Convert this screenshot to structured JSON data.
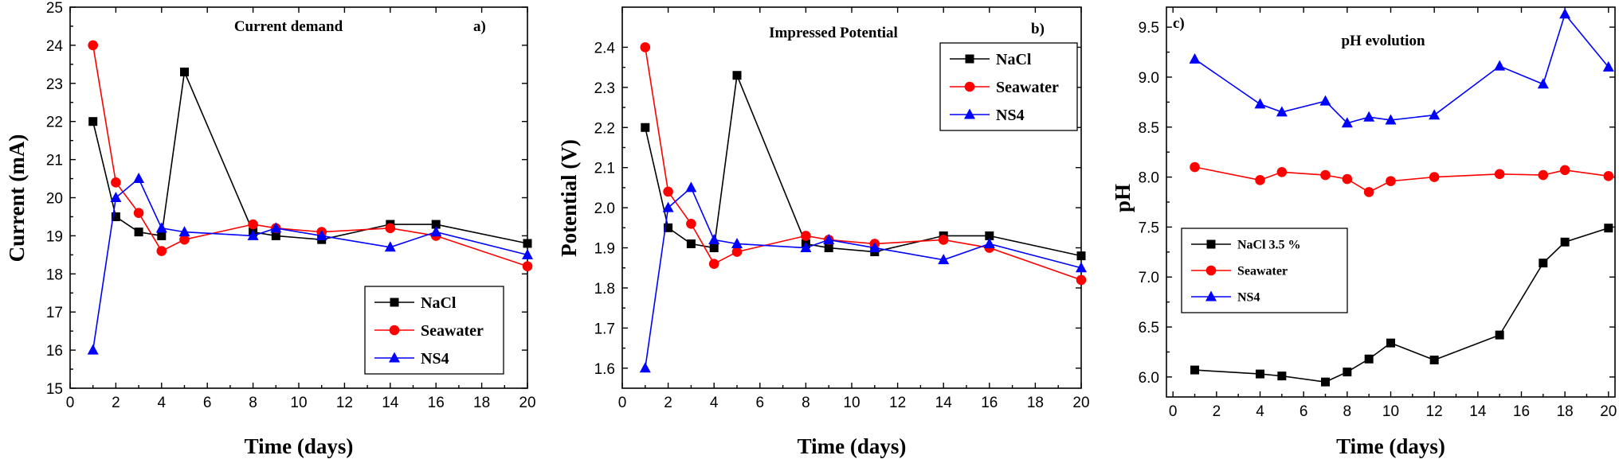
{
  "figure_colors": {
    "NaCl": "#000000",
    "Seawater": "#ff0000",
    "NS4": "#0000ff"
  },
  "chart_data": [
    {
      "type": "line",
      "title": "Current demand",
      "panel_label": "a)",
      "xlabel": "Time (days)",
      "ylabel": "Current (mA)",
      "xlim": [
        0,
        20
      ],
      "ylim": [
        15,
        25
      ],
      "xticks": [
        "0",
        "2",
        "4",
        "6",
        "8",
        "10",
        "12",
        "14",
        "16",
        "18",
        "20"
      ],
      "yticks": [
        "15",
        "16",
        "17",
        "18",
        "19",
        "20",
        "21",
        "22",
        "23",
        "24",
        "25"
      ],
      "legend": "bottom-right",
      "series": [
        {
          "name": "NaCl",
          "marker": "square",
          "x": [
            1,
            2,
            3,
            4,
            5,
            8,
            9,
            11,
            14,
            16,
            20
          ],
          "y": [
            22.0,
            19.5,
            19.1,
            19.0,
            23.3,
            19.1,
            19.0,
            18.9,
            19.3,
            19.3,
            18.8
          ]
        },
        {
          "name": "Seawater",
          "marker": "circle",
          "x": [
            1,
            2,
            3,
            4,
            5,
            8,
            9,
            11,
            14,
            16,
            20
          ],
          "y": [
            24.0,
            20.4,
            19.6,
            18.6,
            18.9,
            19.3,
            19.2,
            19.1,
            19.2,
            19.0,
            18.2
          ]
        },
        {
          "name": "NS4",
          "marker": "triangle",
          "x": [
            1,
            2,
            3,
            4,
            5,
            8,
            9,
            11,
            14,
            16,
            20
          ],
          "y": [
            16.0,
            20.0,
            20.5,
            19.2,
            19.1,
            19.0,
            19.2,
            19.0,
            18.7,
            19.1,
            18.5
          ]
        }
      ]
    },
    {
      "type": "line",
      "title": "Impressed Potential",
      "panel_label": "b)",
      "xlabel": "Time (days)",
      "ylabel": "Potential (V)",
      "xlim": [
        0,
        20
      ],
      "ylim": [
        1.55,
        2.5
      ],
      "xticks": [
        "0",
        "2",
        "4",
        "6",
        "8",
        "10",
        "12",
        "14",
        "16",
        "18",
        "20"
      ],
      "yticks": [
        "1.6",
        "1.7",
        "1.8",
        "1.9",
        "2.0",
        "2.1",
        "2.2",
        "2.3",
        "2.4"
      ],
      "legend": "top-right",
      "series": [
        {
          "name": "NaCl",
          "marker": "square",
          "x": [
            1,
            2,
            3,
            4,
            5,
            8,
            9,
            11,
            14,
            16,
            20
          ],
          "y": [
            2.2,
            1.95,
            1.91,
            1.9,
            2.33,
            1.91,
            1.9,
            1.89,
            1.93,
            1.93,
            1.88
          ]
        },
        {
          "name": "Seawater",
          "marker": "circle",
          "x": [
            1,
            2,
            3,
            4,
            5,
            8,
            9,
            11,
            14,
            16,
            20
          ],
          "y": [
            2.4,
            2.04,
            1.96,
            1.86,
            1.89,
            1.93,
            1.92,
            1.91,
            1.92,
            1.9,
            1.82
          ]
        },
        {
          "name": "NS4",
          "marker": "triangle",
          "x": [
            1,
            2,
            3,
            4,
            5,
            8,
            9,
            11,
            14,
            16,
            20
          ],
          "y": [
            1.6,
            2.0,
            2.05,
            1.92,
            1.91,
            1.9,
            1.92,
            1.9,
            1.87,
            1.91,
            1.85
          ]
        }
      ]
    },
    {
      "type": "line",
      "title": "pH evolution",
      "panel_label": "c)",
      "xlabel": "Time (days)",
      "ylabel": "pH",
      "xlim": [
        -0.3,
        20.3
      ],
      "ylim": [
        5.8,
        9.7
      ],
      "xticks": [
        "0",
        "2",
        "4",
        "6",
        "8",
        "10",
        "12",
        "14",
        "16",
        "18",
        "20"
      ],
      "yticks": [
        "6.0",
        "6.5",
        "7.0",
        "7.5",
        "8.0",
        "8.5",
        "9.0",
        "9.5"
      ],
      "legend": "middle-left",
      "series": [
        {
          "name": "NaCl 3.5 %",
          "marker": "square",
          "x": [
            1,
            4,
            5,
            7,
            8,
            9,
            10,
            12,
            15,
            17,
            18,
            20
          ],
          "y": [
            6.07,
            6.03,
            6.01,
            5.95,
            6.05,
            6.18,
            6.34,
            6.17,
            6.42,
            7.14,
            7.35,
            7.49
          ]
        },
        {
          "name": "Seawater",
          "marker": "circle",
          "x": [
            1,
            4,
            5,
            7,
            8,
            9,
            10,
            12,
            15,
            17,
            18,
            20
          ],
          "y": [
            8.1,
            7.97,
            8.05,
            8.02,
            7.98,
            7.85,
            7.96,
            8.0,
            8.03,
            8.02,
            8.07,
            8.01
          ]
        },
        {
          "name": "NS4",
          "marker": "triangle",
          "x": [
            1,
            4,
            5,
            7,
            8,
            9,
            10,
            12,
            15,
            17,
            18,
            20
          ],
          "y": [
            9.18,
            8.73,
            8.65,
            8.76,
            8.54,
            8.6,
            8.57,
            8.62,
            9.11,
            8.93,
            9.63,
            9.1
          ]
        }
      ]
    }
  ]
}
